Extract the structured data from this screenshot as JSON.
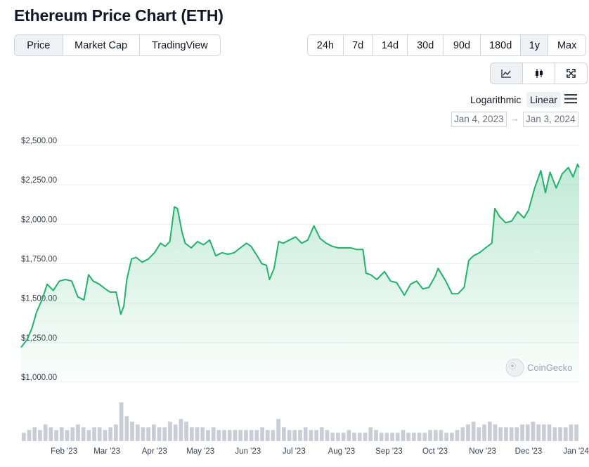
{
  "page": {
    "title": "Ethereum Price Chart (ETH)"
  },
  "view_tabs": [
    {
      "label": "Price",
      "active": true
    },
    {
      "label": "Market Cap",
      "active": false
    },
    {
      "label": "TradingView",
      "active": false
    }
  ],
  "range_tabs": [
    {
      "label": "24h",
      "active": false
    },
    {
      "label": "7d",
      "active": false
    },
    {
      "label": "14d",
      "active": false
    },
    {
      "label": "30d",
      "active": false
    },
    {
      "label": "90d",
      "active": false
    },
    {
      "label": "180d",
      "active": false
    },
    {
      "label": "1y",
      "active": true
    },
    {
      "label": "Max",
      "active": false
    }
  ],
  "chart_modes": [
    {
      "icon": "line-chart-icon",
      "active": true
    },
    {
      "icon": "candlestick-icon",
      "active": false
    },
    {
      "icon": "fullscreen-icon",
      "active": false
    }
  ],
  "scale": {
    "log_label": "Logarithmic",
    "linear_label": "Linear",
    "selected": "Linear"
  },
  "date_range": {
    "from": "Jan 4, 2023",
    "arrow": "→",
    "to": "Jan 3, 2024"
  },
  "watermark": "CoinGecko",
  "colors": {
    "line": "#22b36b",
    "fill_top": "#22b36b",
    "volume": "#c9ced6",
    "grid": "#eef0f3"
  },
  "chart_data": {
    "type": "area",
    "title": "",
    "xlabel": "",
    "ylabel": "",
    "ylim": [
      1000,
      2500
    ],
    "yticks": [
      "$1,000.00",
      "$1,250.00",
      "$1,500.00",
      "$1,750.00",
      "$2,000.00",
      "$2,250.00",
      "$2,500.00"
    ],
    "ytick_values": [
      1000,
      1250,
      1500,
      1750,
      2000,
      2250,
      2500
    ],
    "xticks": [
      "Feb '23",
      "Mar '23",
      "Apr '23",
      "May '23",
      "Jun '23",
      "Jul '23",
      "Aug '23",
      "Sep '23",
      "Oct '23",
      "Nov '23",
      "Dec '23",
      "Jan '24"
    ],
    "xtick_dates": [
      "2023-02-01",
      "2023-03-01",
      "2023-04-01",
      "2023-05-01",
      "2023-06-01",
      "2023-07-01",
      "2023-08-01",
      "2023-09-01",
      "2023-10-01",
      "2023-11-01",
      "2023-12-01",
      "2024-01-01"
    ],
    "x_range": [
      "2023-01-04",
      "2024-01-03"
    ],
    "grid": true,
    "series": [
      {
        "x": [
          "2023-01-04",
          "2023-01-08",
          "2023-01-11",
          "2023-01-14",
          "2023-01-18",
          "2023-01-21",
          "2023-01-25",
          "2023-01-29",
          "2023-02-02",
          "2023-02-06",
          "2023-02-10",
          "2023-02-14",
          "2023-02-17",
          "2023-02-20",
          "2023-02-24",
          "2023-02-28",
          "2023-03-03",
          "2023-03-07",
          "2023-03-10",
          "2023-03-12",
          "2023-03-14",
          "2023-03-17",
          "2023-03-20",
          "2023-03-24",
          "2023-03-28",
          "2023-04-01",
          "2023-04-05",
          "2023-04-08",
          "2023-04-11",
          "2023-04-14",
          "2023-04-16",
          "2023-04-19",
          "2023-04-21",
          "2023-04-25",
          "2023-04-29",
          "2023-05-03",
          "2023-05-07",
          "2023-05-11",
          "2023-05-15",
          "2023-05-19",
          "2023-05-23",
          "2023-05-27",
          "2023-05-31",
          "2023-06-03",
          "2023-06-07",
          "2023-06-10",
          "2023-06-13",
          "2023-06-15",
          "2023-06-18",
          "2023-06-21",
          "2023-06-24",
          "2023-06-28",
          "2023-07-02",
          "2023-07-06",
          "2023-07-10",
          "2023-07-14",
          "2023-07-18",
          "2023-07-22",
          "2023-07-26",
          "2023-07-30",
          "2023-08-03",
          "2023-08-07",
          "2023-08-11",
          "2023-08-15",
          "2023-08-17",
          "2023-08-20",
          "2023-08-24",
          "2023-08-29",
          "2023-09-02",
          "2023-09-06",
          "2023-09-11",
          "2023-09-15",
          "2023-09-19",
          "2023-09-23",
          "2023-09-27",
          "2023-10-01",
          "2023-10-03",
          "2023-10-08",
          "2023-10-12",
          "2023-10-16",
          "2023-10-20",
          "2023-10-23",
          "2023-10-26",
          "2023-10-30",
          "2023-11-03",
          "2023-11-07",
          "2023-11-09",
          "2023-11-12",
          "2023-11-16",
          "2023-11-20",
          "2023-11-24",
          "2023-11-28",
          "2023-12-01",
          "2023-12-05",
          "2023-12-09",
          "2023-12-12",
          "2023-12-15",
          "2023-12-19",
          "2023-12-23",
          "2023-12-27",
          "2023-12-30",
          "2024-01-02",
          "2024-01-03"
        ],
        "y": [
          1220,
          1270,
          1340,
          1440,
          1530,
          1620,
          1580,
          1640,
          1650,
          1640,
          1540,
          1520,
          1680,
          1640,
          1620,
          1590,
          1570,
          1570,
          1430,
          1480,
          1650,
          1780,
          1790,
          1760,
          1780,
          1820,
          1880,
          1860,
          1890,
          2110,
          2100,
          1950,
          1880,
          1850,
          1890,
          1870,
          1900,
          1800,
          1820,
          1810,
          1820,
          1850,
          1880,
          1860,
          1800,
          1750,
          1740,
          1650,
          1720,
          1890,
          1880,
          1900,
          1920,
          1880,
          1900,
          1990,
          1910,
          1880,
          1860,
          1850,
          1850,
          1850,
          1840,
          1840,
          1690,
          1680,
          1650,
          1700,
          1640,
          1630,
          1550,
          1620,
          1640,
          1590,
          1600,
          1670,
          1720,
          1640,
          1560,
          1560,
          1600,
          1770,
          1800,
          1820,
          1850,
          1880,
          2100,
          2050,
          2010,
          2020,
          2080,
          2040,
          2090,
          2230,
          2340,
          2200,
          2330,
          2230,
          2320,
          2360,
          2300,
          2380,
          2360
        ]
      }
    ],
    "volume": {
      "note": "",
      "values": [
        3,
        4,
        5,
        4,
        6,
        5,
        4,
        5,
        4,
        5,
        6,
        5,
        4,
        5,
        5,
        4,
        5,
        6,
        14,
        9,
        7,
        6,
        5,
        5,
        6,
        5,
        5,
        7,
        6,
        8,
        7,
        5,
        5,
        5,
        4,
        5,
        4,
        4,
        4,
        4,
        4,
        4,
        4,
        4,
        5,
        4,
        4,
        8,
        5,
        4,
        4,
        4,
        5,
        4,
        4,
        5,
        4,
        3,
        3,
        3,
        4,
        3,
        3,
        3,
        5,
        4,
        3,
        3,
        3,
        3,
        4,
        3,
        3,
        3,
        3,
        4,
        4,
        4,
        3,
        3,
        4,
        5,
        6,
        7,
        5,
        6,
        7,
        6,
        5,
        5,
        5,
        5,
        6,
        6,
        7,
        6,
        6,
        6,
        5,
        5,
        5,
        6,
        6
      ]
    }
  }
}
